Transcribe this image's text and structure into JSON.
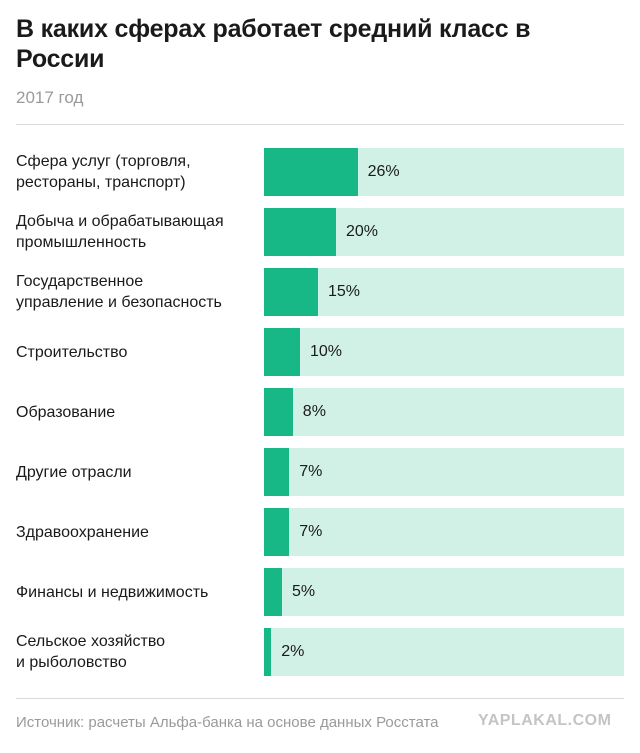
{
  "header": {
    "title": "В каких сферах работает средний класс в России",
    "subtitle": "2017 год"
  },
  "footer": {
    "source": "Источник: расчеты Альфа-банка на основе данных Росстата",
    "watermark": "YAPLAKAL.COM"
  },
  "colors": {
    "bar": "#17b885",
    "track": "#d2f1e6"
  },
  "chart_data": {
    "type": "bar",
    "orientation": "horizontal",
    "title": "В каких сферах работает средний класс в России",
    "subtitle": "2017 год",
    "categories": [
      "Сфера услуг (торговля,\nрестораны, транспорт)",
      "Добыча и обрабатывающая\nпромышленность",
      "Государственное\nуправление и безопасность",
      "Строительство",
      "Образование",
      "Другие отрасли",
      "Здравоохранение",
      "Финансы и недвижимость",
      "Сельское хозяйство\nи рыболовство"
    ],
    "values": [
      26,
      20,
      15,
      10,
      8,
      7,
      7,
      5,
      2
    ],
    "value_labels": [
      "26%",
      "20%",
      "15%",
      "10%",
      "8%",
      "7%",
      "7%",
      "5%",
      "2%"
    ],
    "unit": "%",
    "xlim": [
      0,
      100
    ],
    "grid": false,
    "legend": "none"
  }
}
